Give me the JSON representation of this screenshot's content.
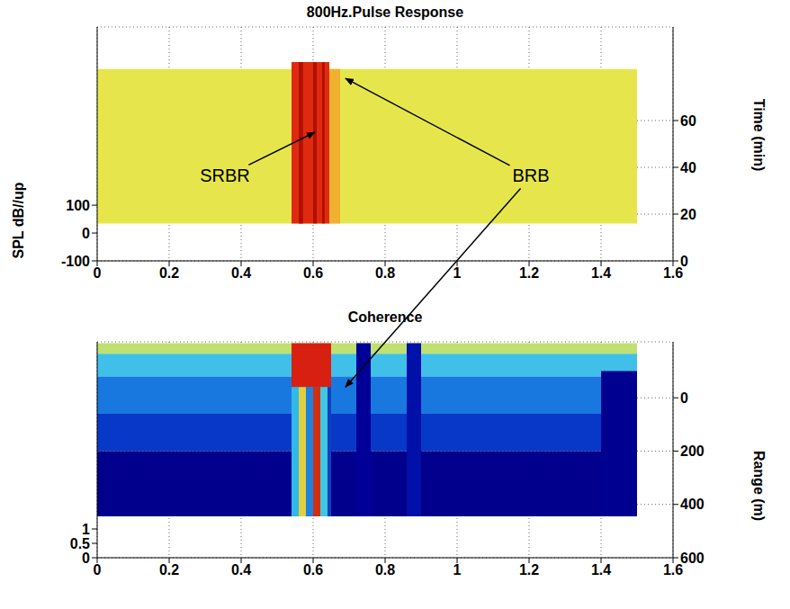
{
  "chart_data": [
    {
      "type": "surface",
      "title": "800Hz.Pulse Response",
      "y_label": "SPL dB//up",
      "y2_label": "Time (min)",
      "xlim": [
        0,
        1.6
      ],
      "xticks": [
        0,
        0.2,
        0.4,
        0.6,
        0.8,
        1,
        1.2,
        1.4,
        1.6
      ],
      "ylim": [
        -100,
        740
      ],
      "yticks": [
        -100,
        0,
        100
      ],
      "y2lim": [
        0,
        100
      ],
      "y2ticks": [
        0,
        20,
        40,
        60
      ],
      "grid": true,
      "cells": [
        {
          "x": [
            0,
            1.5
          ],
          "y": [
            16,
            82
          ],
          "color": "#e6e64c"
        },
        {
          "x": [
            0.645,
            0.675
          ],
          "y": [
            16,
            82
          ],
          "color": "#f0b030"
        },
        {
          "x": [
            0.54,
            0.645
          ],
          "y": [
            16,
            85
          ],
          "color": "#e02a10"
        },
        {
          "x": [
            0.56,
            0.572
          ],
          "y": [
            16,
            85
          ],
          "color": "#b01000"
        },
        {
          "x": [
            0.6,
            0.61
          ],
          "y": [
            16,
            85
          ],
          "color": "#b01000"
        },
        {
          "x": [
            0.625,
            0.632
          ],
          "y": [
            16,
            85
          ],
          "color": "#b01000"
        }
      ],
      "annotations": [
        {
          "text": "SRBR",
          "x": 0.355,
          "y": 36,
          "arrows_to": [
            {
              "x": 0.605,
              "y": 55
            }
          ]
        },
        {
          "text": "BRB",
          "x": 1.205,
          "y": 36,
          "arrows_to": [
            {
              "x": 0.69,
              "y": 78
            },
            {
              "panel": 1,
              "x": 0.69,
              "y": -40
            }
          ]
        }
      ]
    },
    {
      "type": "surface",
      "title": "Coherence",
      "y2_label": "Range (m)",
      "xlim": [
        0,
        1.6
      ],
      "xticks": [
        0,
        0.2,
        0.4,
        0.6,
        0.8,
        1,
        1.2,
        1.4,
        1.6
      ],
      "ylim": [
        0,
        7.5
      ],
      "yticks": [
        0,
        0.5,
        1
      ],
      "y2lim": [
        600,
        -210
      ],
      "y2ticks": [
        0,
        200,
        400,
        600
      ],
      "grid": true,
      "cells": [
        {
          "x": [
            0,
            1.5
          ],
          "y": [
            -205,
            -165
          ],
          "color": "#c0e070"
        },
        {
          "x": [
            0,
            1.5
          ],
          "y": [
            -165,
            -80
          ],
          "color": "#40c0e8"
        },
        {
          "x": [
            0,
            1.5
          ],
          "y": [
            -80,
            60
          ],
          "color": "#1878e0"
        },
        {
          "x": [
            0,
            1.5
          ],
          "y": [
            60,
            200
          ],
          "color": "#0838c8"
        },
        {
          "x": [
            0,
            1.5
          ],
          "y": [
            200,
            445
          ],
          "color": "#00008c"
        },
        {
          "x": [
            0.72,
            0.76
          ],
          "y": [
            -205,
            445
          ],
          "color": "#000098"
        },
        {
          "x": [
            0.86,
            0.9
          ],
          "y": [
            -205,
            445
          ],
          "color": "#0010a8"
        },
        {
          "x": [
            1.4,
            1.5
          ],
          "y": [
            -100,
            445
          ],
          "color": "#000090"
        },
        {
          "x": [
            0.54,
            0.65
          ],
          "y": [
            -205,
            -40
          ],
          "color": "#d82010"
        },
        {
          "x": [
            0.54,
            0.56
          ],
          "y": [
            -40,
            445
          ],
          "color": "#30b8e8"
        },
        {
          "x": [
            0.56,
            0.58
          ],
          "y": [
            -40,
            445
          ],
          "color": "#e0d040"
        },
        {
          "x": [
            0.58,
            0.6
          ],
          "y": [
            -40,
            445
          ],
          "color": "#2080e0"
        },
        {
          "x": [
            0.6,
            0.62
          ],
          "y": [
            -40,
            445
          ],
          "color": "#d03010"
        },
        {
          "x": [
            0.62,
            0.64
          ],
          "y": [
            -40,
            445
          ],
          "color": "#40c8e0"
        },
        {
          "x": [
            0.64,
            0.65
          ],
          "y": [
            -40,
            445
          ],
          "color": "#1040c0"
        }
      ]
    }
  ]
}
